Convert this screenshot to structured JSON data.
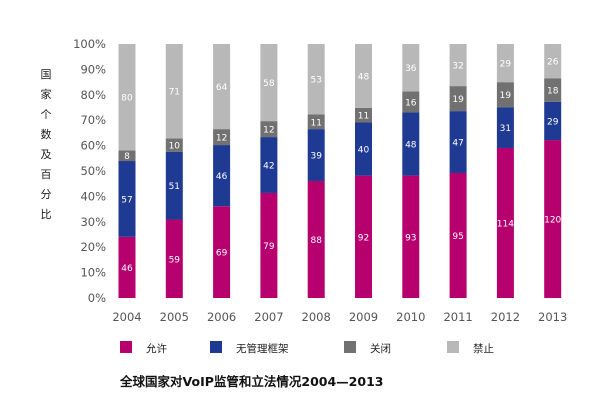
{
  "chart_data": {
    "type": "bar",
    "stacked": true,
    "normalized": true,
    "title": "全球国家对VoIP监管和立法情况2004—2013",
    "ylabel": "国家个数及百分比",
    "xlabel": "",
    "ylim": [
      0,
      100
    ],
    "yticks": [
      "0%",
      "10%",
      "20%",
      "30%",
      "40%",
      "50%",
      "60%",
      "70%",
      "80%",
      "90%",
      "100%"
    ],
    "grid": false,
    "legend_position": "bottom",
    "categories": [
      "2004",
      "2005",
      "2006",
      "2007",
      "2008",
      "2009",
      "2010",
      "2011",
      "2012",
      "2013"
    ],
    "series": [
      {
        "name": "允许",
        "color": "#b5006e",
        "values": [
          46,
          59,
          69,
          79,
          88,
          92,
          93,
          95,
          114,
          120
        ]
      },
      {
        "name": "无管理框架",
        "color": "#1f3a93",
        "values": [
          57,
          51,
          46,
          42,
          39,
          40,
          48,
          47,
          31,
          29
        ]
      },
      {
        "name": "关闭",
        "color": "#717171",
        "values": [
          8,
          10,
          12,
          12,
          11,
          11,
          16,
          19,
          19,
          18
        ]
      },
      {
        "name": "禁止",
        "color": "#b8b8b8",
        "values": [
          80,
          71,
          64,
          58,
          53,
          48,
          36,
          32,
          29,
          26
        ]
      }
    ]
  }
}
